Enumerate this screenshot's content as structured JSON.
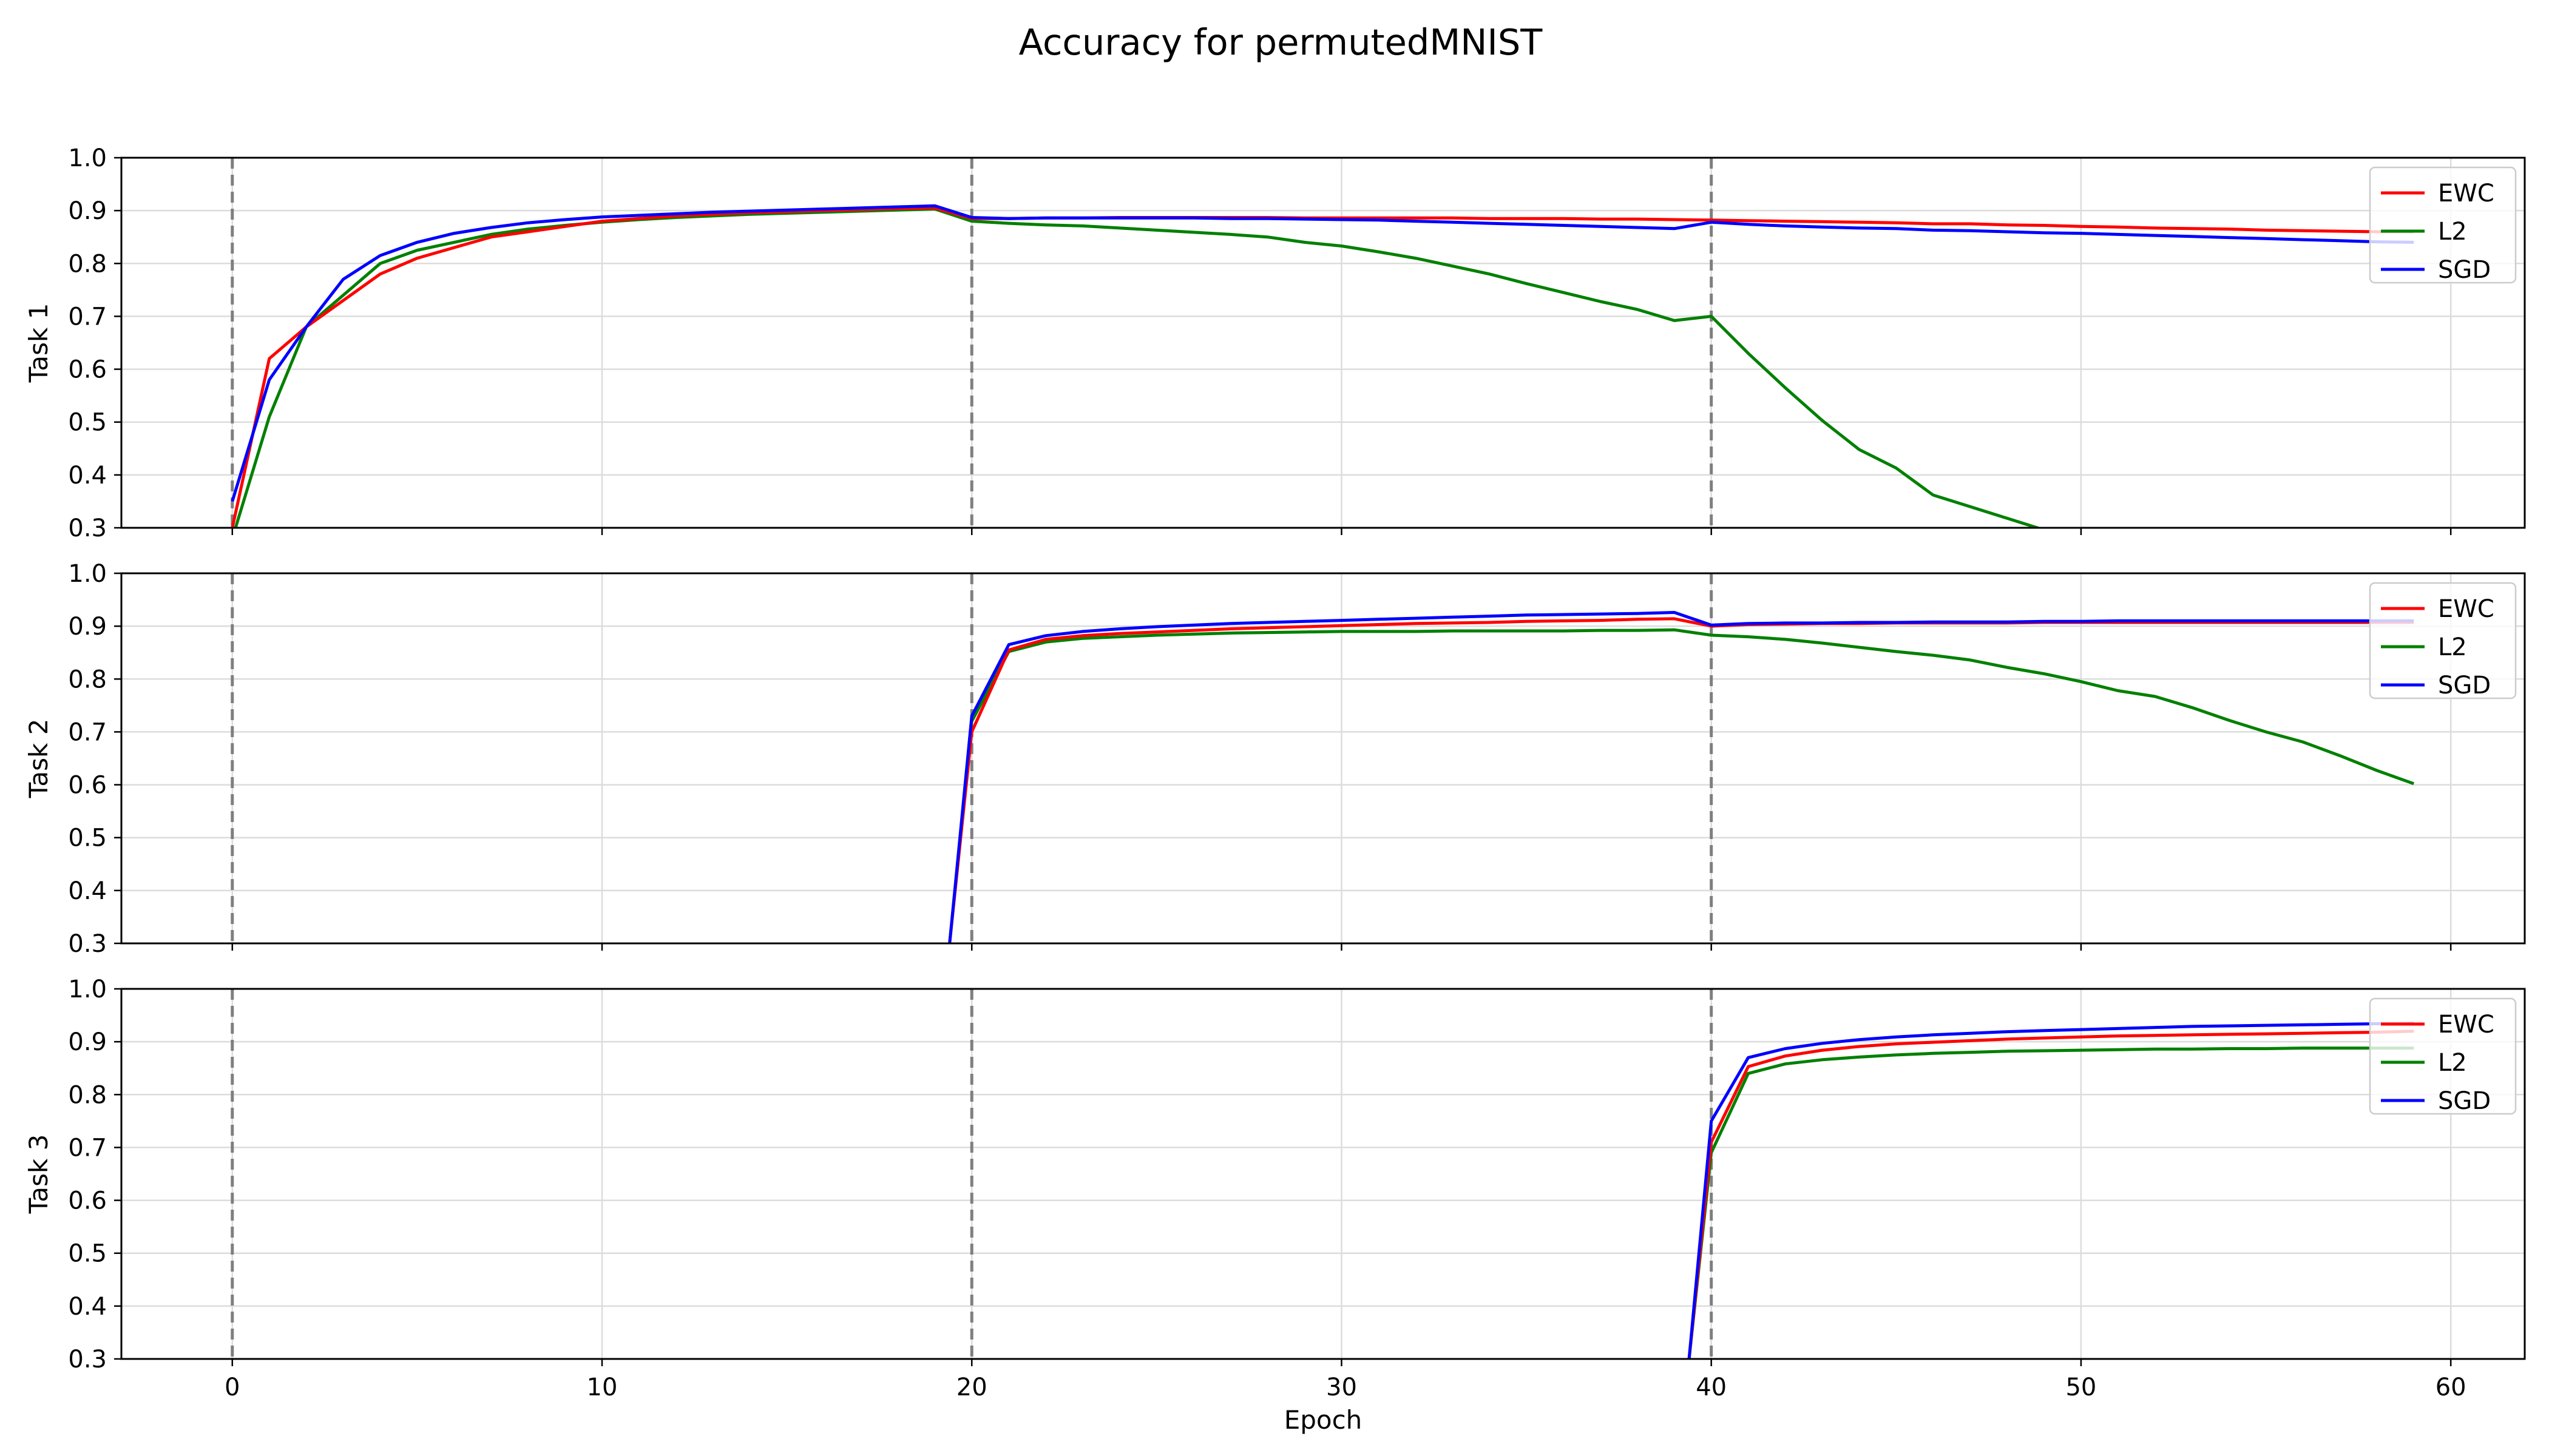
{
  "figure": {
    "title": "Accuracy for permutedMNIST"
  },
  "chart_data": {
    "type": "line",
    "title": "Accuracy for permutedMNIST",
    "xlabel": "Epoch",
    "xlim": [
      -3,
      62
    ],
    "xticks": [
      0,
      10,
      20,
      30,
      40,
      50,
      60
    ],
    "ylim": [
      0.3,
      1.0
    ],
    "yticks": [
      0.3,
      0.4,
      0.5,
      0.6,
      0.7,
      0.8,
      0.9,
      1.0
    ],
    "grid": true,
    "legend_placement": "upper-right",
    "task_boundaries": [
      0,
      20,
      40
    ],
    "series_colors": {
      "EWC": "#ff0000",
      "L2": "#008000",
      "SGD": "#0000ff"
    },
    "panels": [
      {
        "ylabel": "Task 1",
        "series": [
          {
            "name": "EWC",
            "start": 0,
            "values": [
              0.3,
              0.62,
              0.68,
              0.73,
              0.78,
              0.81,
              0.83,
              0.85,
              0.86,
              0.87,
              0.88,
              0.885,
              0.89,
              0.893,
              0.896,
              0.898,
              0.9,
              0.902,
              0.904,
              0.905,
              0.885,
              0.885,
              0.886,
              0.886,
              0.887,
              0.887,
              0.887,
              0.887,
              0.887,
              0.886,
              0.886,
              0.886,
              0.886,
              0.886,
              0.885,
              0.885,
              0.885,
              0.884,
              0.884,
              0.883,
              0.882,
              0.881,
              0.88,
              0.879,
              0.878,
              0.877,
              0.875,
              0.875,
              0.873,
              0.872,
              0.87,
              0.869,
              0.867,
              0.866,
              0.865,
              0.863,
              0.862,
              0.861,
              0.86,
              0.86
            ]
          },
          {
            "name": "L2",
            "start": 0,
            "values": [
              0.28,
              0.51,
              0.68,
              0.74,
              0.8,
              0.825,
              0.84,
              0.855,
              0.865,
              0.872,
              0.878,
              0.883,
              0.887,
              0.89,
              0.893,
              0.895,
              0.897,
              0.899,
              0.901,
              0.903,
              0.88,
              0.876,
              0.873,
              0.871,
              0.867,
              0.863,
              0.859,
              0.855,
              0.85,
              0.84,
              0.833,
              0.822,
              0.81,
              0.795,
              0.78,
              0.762,
              0.745,
              0.728,
              0.713,
              0.692,
              0.7,
              0.63,
              0.565,
              0.503,
              0.448,
              0.413,
              0.362,
              0.34,
              0.318,
              0.296
            ]
          },
          {
            "name": "SGD",
            "start": 0,
            "values": [
              0.35,
              0.58,
              0.68,
              0.77,
              0.815,
              0.84,
              0.857,
              0.868,
              0.877,
              0.883,
              0.888,
              0.891,
              0.894,
              0.897,
              0.899,
              0.901,
              0.903,
              0.905,
              0.907,
              0.909,
              0.887,
              0.885,
              0.886,
              0.886,
              0.886,
              0.886,
              0.886,
              0.885,
              0.885,
              0.884,
              0.883,
              0.882,
              0.88,
              0.878,
              0.876,
              0.874,
              0.872,
              0.87,
              0.868,
              0.866,
              0.878,
              0.874,
              0.871,
              0.869,
              0.867,
              0.866,
              0.863,
              0.862,
              0.86,
              0.858,
              0.857,
              0.855,
              0.853,
              0.851,
              0.849,
              0.847,
              0.845,
              0.843,
              0.841,
              0.84
            ]
          }
        ]
      },
      {
        "ylabel": "Task 2",
        "series": [
          {
            "name": "EWC",
            "start": 19.4,
            "values": [
              0.3
            ]
          },
          {
            "name": "L2",
            "start": 19.4,
            "values": [
              0.3
            ]
          },
          {
            "name": "SGD",
            "start": 19.4,
            "values": [
              0.3
            ]
          }
        ]
      },
      {
        "ylabel": "Task 3",
        "series": [
          {
            "name": "EWC",
            "start": 39.4,
            "values": [
              0.3
            ]
          },
          {
            "name": "L2",
            "start": 39.4,
            "values": [
              0.3
            ]
          },
          {
            "name": "SGD",
            "start": 39.4,
            "values": [
              0.3
            ]
          }
        ]
      }
    ]
  }
}
